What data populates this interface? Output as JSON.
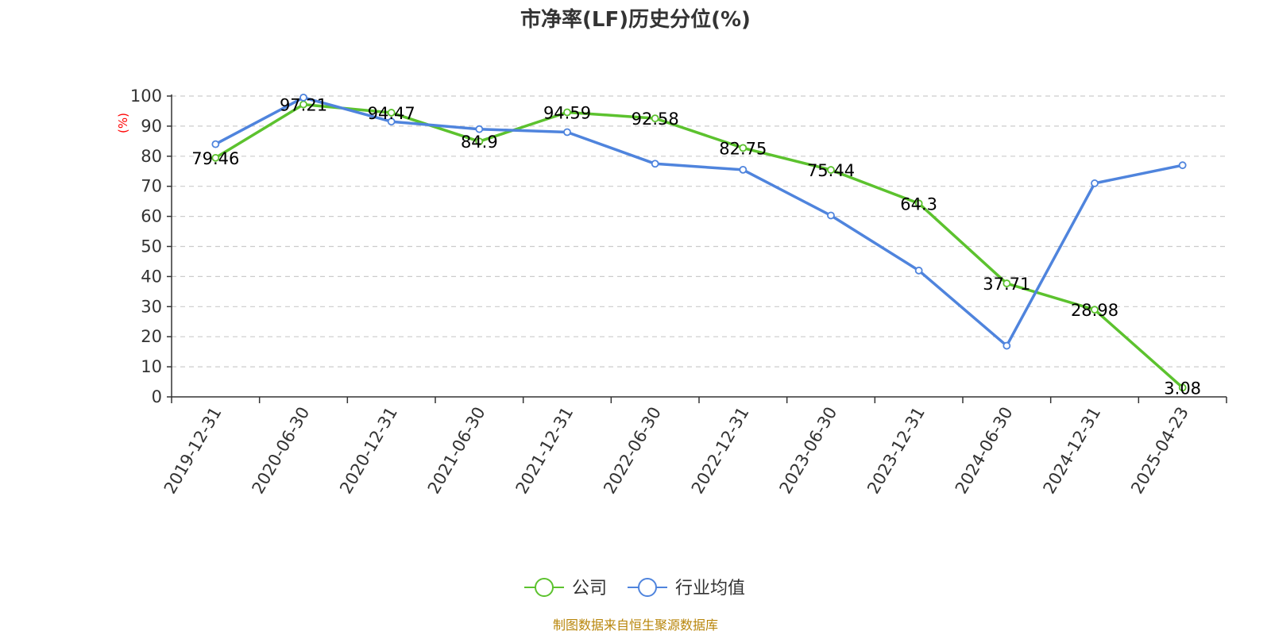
{
  "chart_data": {
    "type": "line",
    "title": "市净率(LF)历史分位(%)",
    "ylabel": "(%)",
    "xlabel": "",
    "ylim": [
      0,
      100
    ],
    "yticks": [
      0,
      10,
      20,
      30,
      40,
      50,
      60,
      70,
      80,
      90,
      100
    ],
    "grid": true,
    "legend_position": "bottom-center",
    "categories": [
      "2019-12-31",
      "2020-06-30",
      "2020-12-31",
      "2021-06-30",
      "2021-12-31",
      "2022-06-30",
      "2022-12-31",
      "2023-06-30",
      "2023-12-31",
      "2024-06-30",
      "2024-12-31",
      "2025-04-23"
    ],
    "series": [
      {
        "name": "公司",
        "color": "#5cc22e",
        "show_labels": true,
        "values": [
          79.46,
          97.21,
          94.47,
          84.9,
          94.59,
          92.58,
          82.75,
          75.44,
          64.3,
          37.71,
          28.98,
          3.08
        ],
        "labels": [
          "79.46",
          "97.21",
          "94.47",
          "84.9",
          "94.59",
          "92.58",
          "82.75",
          "75.44",
          "64.3",
          "37.71",
          "28.98",
          "3.08"
        ]
      },
      {
        "name": "行业均值",
        "color": "#4f84dd",
        "show_labels": false,
        "values": [
          84,
          99.5,
          91.5,
          89,
          88,
          77.5,
          75.5,
          60.3,
          42,
          17,
          71,
          77
        ]
      }
    ],
    "source": "制图数据来自恒生聚源数据库"
  }
}
